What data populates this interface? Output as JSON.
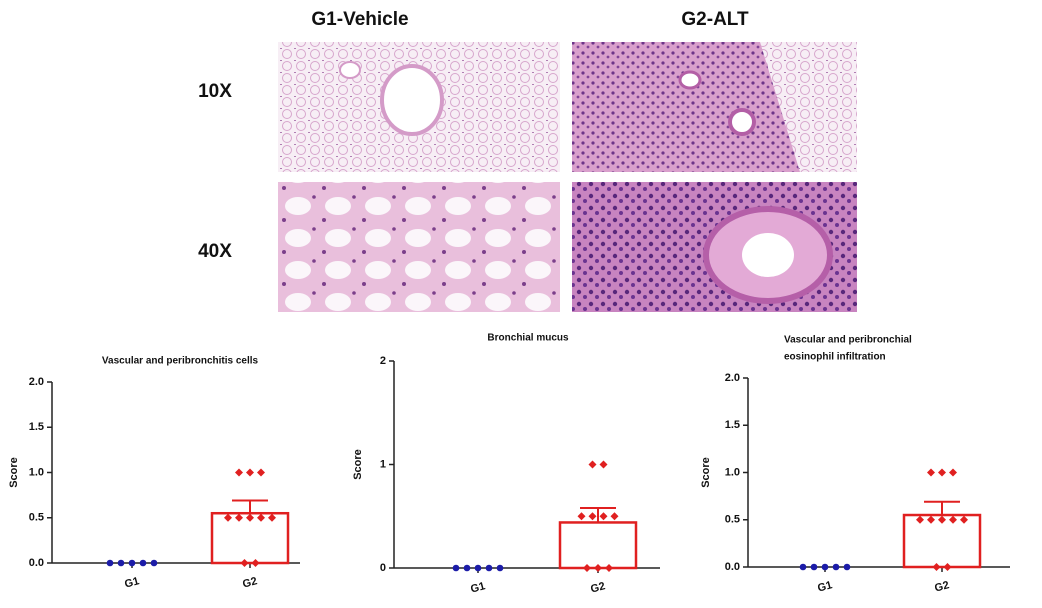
{
  "figure": {
    "columns": [
      "G1-Vehicle",
      "G2-ALT"
    ],
    "rows": [
      "10X",
      "40X"
    ]
  },
  "chart_data": [
    {
      "type": "bar",
      "title": [
        "Vascular and peribronchitis cells"
      ],
      "ylabel": "Score",
      "categories": [
        "G1",
        "G2"
      ],
      "values": [
        0,
        0.55
      ],
      "errors": [
        0,
        0.14
      ],
      "points": [
        [
          0,
          0,
          0,
          0,
          0
        ],
        [
          1,
          1,
          1,
          0.5,
          0.5,
          0.5,
          0.5,
          0.5,
          0,
          0
        ]
      ],
      "point_colors": [
        "#1c1ca8",
        "#e02020"
      ],
      "markers": [
        "circle",
        "diamond"
      ],
      "color": "#e02020",
      "ylim": [
        0,
        2
      ],
      "yticks": [
        {
          "value": 0,
          "label": "0.0"
        },
        {
          "value": 0.5,
          "label": "0.5"
        },
        {
          "value": 1,
          "label": "1.0"
        },
        {
          "value": 1.5,
          "label": "1.5"
        },
        {
          "value": 2,
          "label": "2.0"
        }
      ]
    },
    {
      "type": "bar",
      "title": [
        "Bronchial mucus"
      ],
      "ylabel": "Score",
      "categories": [
        "G1",
        "G2"
      ],
      "values": [
        0,
        0.44
      ],
      "errors": [
        0,
        0.14
      ],
      "points": [
        [
          0,
          0,
          0,
          0,
          0
        ],
        [
          1,
          1,
          0.5,
          0.5,
          0.5,
          0.5,
          0,
          0,
          0
        ]
      ],
      "point_colors": [
        "#1c1ca8",
        "#e02020"
      ],
      "markers": [
        "circle",
        "diamond"
      ],
      "color": "#e02020",
      "ylim": [
        0,
        2
      ],
      "yticks": [
        0,
        1,
        2
      ]
    },
    {
      "type": "bar",
      "title": [
        "Vascular and peribronchial",
        "eosinophil infiltration"
      ],
      "ylabel": "Score",
      "categories": [
        "G1",
        "G2"
      ],
      "values": [
        0,
        0.55
      ],
      "errors": [
        0,
        0.14
      ],
      "points": [
        [
          0,
          0,
          0,
          0,
          0
        ],
        [
          1,
          1,
          1,
          0.5,
          0.5,
          0.5,
          0.5,
          0.5,
          0,
          0
        ]
      ],
      "point_colors": [
        "#1c1ca8",
        "#e02020"
      ],
      "markers": [
        "circle",
        "diamond"
      ],
      "color": "#e02020",
      "ylim": [
        0,
        2
      ],
      "yticks": [
        {
          "value": 0,
          "label": "0.0"
        },
        {
          "value": 0.5,
          "label": "0.5"
        },
        {
          "value": 1,
          "label": "1.0"
        },
        {
          "value": 1.5,
          "label": "1.5"
        },
        {
          "value": 2,
          "label": "2.0"
        }
      ]
    }
  ]
}
